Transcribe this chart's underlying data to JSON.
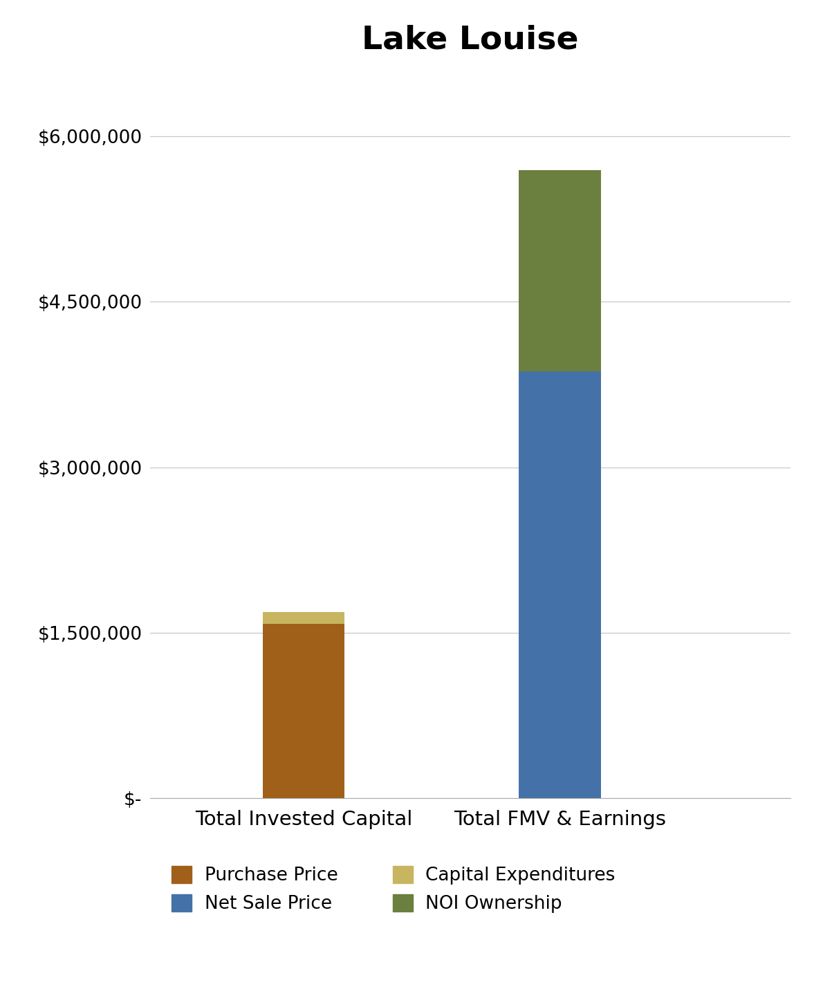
{
  "title": "Lake Louise",
  "categories": [
    "Total Invested Capital",
    "Total FMV & Earnings"
  ],
  "segments": {
    "Total Invested Capital": {
      "Purchase Price": 1580000,
      "Capital Expenditures": 110000
    },
    "Total FMV & Earnings": {
      "Net Sale Price": 3870000,
      "NOI Ownership": 1820000
    }
  },
  "colors": {
    "Purchase Price": "#a0601a",
    "Capital Expenditures": "#c8b560",
    "Net Sale Price": "#4472a8",
    "NOI Ownership": "#6b7f3e"
  },
  "ylim": [
    0,
    6600000
  ],
  "yticks": [
    0,
    1500000,
    3000000,
    4500000,
    6000000
  ],
  "ytick_labels": [
    "$-",
    "$1,500,000",
    "$3,000,000",
    "$4,500,000",
    "$6,000,000"
  ],
  "legend_order": [
    [
      "Purchase Price",
      "Net Sale Price"
    ],
    [
      "Capital Expenditures",
      "NOI Ownership"
    ]
  ],
  "background_color": "#ffffff",
  "title_fontsize": 34,
  "tick_fontsize": 19,
  "xlabel_fontsize": 21,
  "legend_fontsize": 19,
  "bar_width": 0.32,
  "x_positions": [
    1,
    2
  ],
  "xlim": [
    0.4,
    2.9
  ]
}
